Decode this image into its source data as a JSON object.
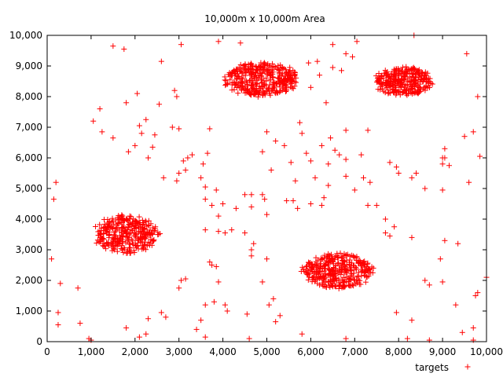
{
  "chart_data": {
    "type": "scatter",
    "title": "10,000m x 10,000m Area",
    "xlabel": "",
    "ylabel": "",
    "xlim": [
      0,
      10000
    ],
    "ylim": [
      0,
      10000
    ],
    "xticks": [
      0,
      1000,
      2000,
      3000,
      4000,
      5000,
      6000,
      7000,
      8000,
      9000,
      10000
    ],
    "yticks": [
      0,
      1000,
      2000,
      3000,
      4000,
      5000,
      6000,
      7000,
      8000,
      9000,
      10000
    ],
    "xtick_labels": [
      "0",
      "1,000",
      "2,000",
      "3,000",
      "4,000",
      "5,000",
      "6,000",
      "7,000",
      "8,000",
      "9,000",
      "10,000"
    ],
    "ytick_labels": [
      "0",
      "1,000",
      "2,000",
      "3,000",
      "4,000",
      "5,000",
      "6,000",
      "7,000",
      "8,000",
      "9,000",
      "10,000"
    ],
    "grid": false,
    "legend_placement": "bottom-right",
    "marker": "+",
    "color": "#ff0000",
    "series": [
      {
        "name": "targets",
        "clusters": [
          {
            "center": [
              4900,
              8550
            ],
            "spread": [
              900,
              600
            ],
            "approx_count": 380
          },
          {
            "center": [
              8100,
              8500
            ],
            "spread": [
              700,
              500
            ],
            "approx_count": 300
          },
          {
            "center": [
              1800,
              3500
            ],
            "spread": [
              800,
              650
            ],
            "approx_count": 330
          },
          {
            "center": [
              6600,
              2300
            ],
            "spread": [
              850,
              600
            ],
            "approx_count": 360
          }
        ],
        "points": [
          [
            100,
            2700
          ],
          [
            200,
            5200
          ],
          [
            150,
            4650
          ],
          [
            250,
            550
          ],
          [
            250,
            950
          ],
          [
            300,
            1900
          ],
          [
            700,
            1750
          ],
          [
            750,
            600
          ],
          [
            950,
            100
          ],
          [
            1000,
            50
          ],
          [
            1050,
            7200
          ],
          [
            1200,
            7600
          ],
          [
            1250,
            6850
          ],
          [
            1500,
            9650
          ],
          [
            1750,
            9550
          ],
          [
            1500,
            6650
          ],
          [
            1800,
            7800
          ],
          [
            1850,
            6200
          ],
          [
            2000,
            6400
          ],
          [
            2050,
            8100
          ],
          [
            2100,
            7050
          ],
          [
            2150,
            6800
          ],
          [
            2250,
            7250
          ],
          [
            2300,
            6000
          ],
          [
            2400,
            6350
          ],
          [
            2450,
            6750
          ],
          [
            2550,
            7750
          ],
          [
            2600,
            9150
          ],
          [
            2650,
            5350
          ],
          [
            2850,
            7000
          ],
          [
            2900,
            8200
          ],
          [
            2950,
            8000
          ],
          [
            3000,
            6950
          ],
          [
            3050,
            9700
          ],
          [
            3100,
            5900
          ],
          [
            3200,
            6000
          ],
          [
            3300,
            6100
          ],
          [
            3000,
            5500
          ],
          [
            3150,
            5600
          ],
          [
            2950,
            5250
          ],
          [
            3500,
            5350
          ],
          [
            3600,
            5050
          ],
          [
            3550,
            5800
          ],
          [
            3650,
            6150
          ],
          [
            3600,
            4650
          ],
          [
            3850,
            4950
          ],
          [
            3750,
            4450
          ],
          [
            3900,
            4100
          ],
          [
            4000,
            4500
          ],
          [
            4050,
            3550
          ],
          [
            3900,
            3600
          ],
          [
            4200,
            3650
          ],
          [
            3700,
            2600
          ],
          [
            3600,
            3650
          ],
          [
            3750,
            2500
          ],
          [
            3850,
            2450
          ],
          [
            3900,
            1950
          ],
          [
            4050,
            1200
          ],
          [
            4100,
            1000
          ],
          [
            3600,
            1200
          ],
          [
            3500,
            700
          ],
          [
            3400,
            400
          ],
          [
            3600,
            150
          ],
          [
            3800,
            1300
          ],
          [
            2600,
            950
          ],
          [
            2700,
            800
          ],
          [
            3050,
            2000
          ],
          [
            3150,
            2050
          ],
          [
            3000,
            1750
          ],
          [
            2250,
            250
          ],
          [
            2300,
            750
          ],
          [
            1800,
            450
          ],
          [
            2100,
            150
          ],
          [
            4300,
            4350
          ],
          [
            4500,
            3550
          ],
          [
            4500,
            4800
          ],
          [
            4650,
            4400
          ],
          [
            4700,
            3200
          ],
          [
            4650,
            2800
          ],
          [
            4650,
            3000
          ],
          [
            4900,
            4800
          ],
          [
            4950,
            4650
          ],
          [
            5000,
            4150
          ],
          [
            4900,
            6200
          ],
          [
            4650,
            4800
          ],
          [
            5100,
            5600
          ],
          [
            5200,
            6550
          ],
          [
            5000,
            6850
          ],
          [
            5400,
            6400
          ],
          [
            5550,
            5850
          ],
          [
            5650,
            5250
          ],
          [
            5750,
            7150
          ],
          [
            5800,
            6800
          ],
          [
            5900,
            6150
          ],
          [
            6000,
            5900
          ],
          [
            6250,
            6400
          ],
          [
            6450,
            6650
          ],
          [
            6550,
            6250
          ],
          [
            6650,
            6100
          ],
          [
            6800,
            5950
          ],
          [
            6400,
            5800
          ],
          [
            6300,
            4700
          ],
          [
            6100,
            5350
          ],
          [
            5600,
            4600
          ],
          [
            5450,
            4600
          ],
          [
            5700,
            4350
          ],
          [
            6000,
            4500
          ],
          [
            6250,
            4450
          ],
          [
            6400,
            5100
          ],
          [
            6800,
            5400
          ],
          [
            7200,
            5350
          ],
          [
            7350,
            5200
          ],
          [
            7150,
            6100
          ],
          [
            7000,
            4950
          ],
          [
            7300,
            4450
          ],
          [
            7500,
            4450
          ],
          [
            7700,
            4000
          ],
          [
            7900,
            3750
          ],
          [
            7800,
            3450
          ],
          [
            7700,
            3550
          ],
          [
            7950,
            5700
          ],
          [
            8000,
            5500
          ],
          [
            7800,
            5850
          ],
          [
            8300,
            5350
          ],
          [
            8400,
            5500
          ],
          [
            8600,
            5000
          ],
          [
            9000,
            4950
          ],
          [
            9050,
            6000
          ],
          [
            9050,
            6300
          ],
          [
            9000,
            5800
          ],
          [
            9150,
            5750
          ],
          [
            9500,
            6700
          ],
          [
            9600,
            5200
          ],
          [
            9850,
            6050
          ],
          [
            9800,
            8000
          ],
          [
            9700,
            6850
          ],
          [
            9550,
            9400
          ],
          [
            9000,
            6000
          ],
          [
            8300,
            3400
          ],
          [
            8600,
            2000
          ],
          [
            8950,
            2700
          ],
          [
            9050,
            3300
          ],
          [
            9000,
            1950
          ],
          [
            9350,
            3200
          ],
          [
            9300,
            1200
          ],
          [
            9450,
            300
          ],
          [
            9700,
            450
          ],
          [
            9750,
            1500
          ],
          [
            9800,
            1600
          ],
          [
            10000,
            2100
          ],
          [
            9700,
            50
          ],
          [
            8700,
            1850
          ],
          [
            8300,
            700
          ],
          [
            8200,
            100
          ],
          [
            8700,
            50
          ],
          [
            7950,
            950
          ],
          [
            6800,
            100
          ],
          [
            6150,
            1900
          ],
          [
            6200,
            1850
          ],
          [
            5800,
            250
          ],
          [
            5200,
            650
          ],
          [
            5150,
            1400
          ],
          [
            5050,
            1200
          ],
          [
            5300,
            850
          ],
          [
            4900,
            1950
          ],
          [
            5000,
            2700
          ],
          [
            4600,
            100
          ],
          [
            4550,
            900
          ],
          [
            6800,
            6900
          ],
          [
            7300,
            6900
          ],
          [
            6500,
            9700
          ],
          [
            6200,
            8700
          ],
          [
            6000,
            8300
          ],
          [
            6150,
            9150
          ],
          [
            5950,
            9100
          ],
          [
            6350,
            7800
          ],
          [
            6500,
            8950
          ],
          [
            6800,
            9400
          ],
          [
            6950,
            9300
          ],
          [
            7050,
            9800
          ],
          [
            8350,
            10000
          ],
          [
            6700,
            8850
          ],
          [
            3900,
            9800
          ],
          [
            4400,
            9750
          ],
          [
            3700,
            6950
          ]
        ]
      }
    ]
  }
}
